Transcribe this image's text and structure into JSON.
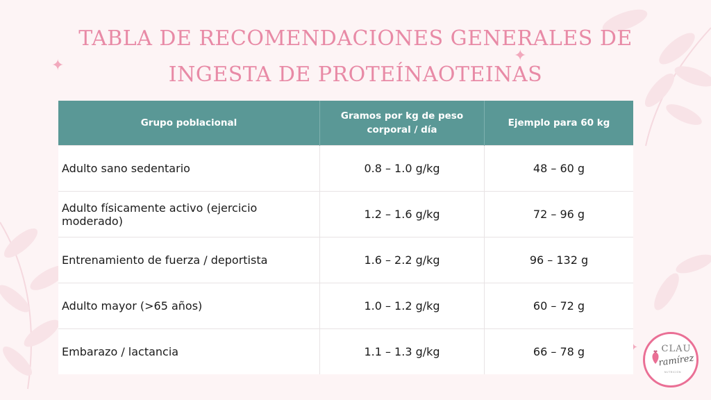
{
  "title": "TABLA DE RECOMENDACIONES GENERALES DE INGESTA DE PROTEÍNAOTEINAS",
  "colors": {
    "title": "#e88aa6",
    "header_bg": "#5a9896",
    "background": "#fdf4f5",
    "logo_ring": "#ea6f95"
  },
  "table": {
    "headers": [
      "Grupo poblacional",
      "Gramos por kg de peso corporal / día",
      "Ejemplo para 60 kg"
    ],
    "rows": [
      [
        "Adulto sano sedentario",
        "0.8 – 1.0 g/kg",
        "48 – 60 g"
      ],
      [
        "Adulto físicamente activo (ejercicio moderado)",
        "1.2 – 1.6 g/kg",
        "72 – 96 g"
      ],
      [
        "Entrenamiento de fuerza / deportista",
        "1.6 – 2.2 g/kg",
        "96 – 132 g"
      ],
      [
        "Adulto mayor (>65 años)",
        "1.0 – 1.2 g/kg",
        "60 – 72 g"
      ],
      [
        "Embarazo / lactancia",
        "1.1 – 1.3 g/kg",
        "66 – 78 g"
      ]
    ]
  },
  "logo": {
    "top": "CLAU",
    "bottom": "ramírez",
    "sub": "NUTRICIÓN"
  },
  "decor_icons": [
    "sparkle-icon",
    "leaf-branch-icon"
  ]
}
